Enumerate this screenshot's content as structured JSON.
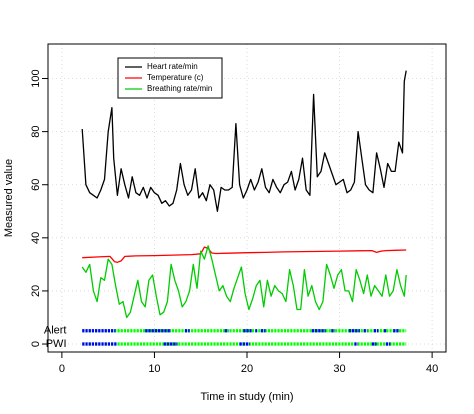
{
  "chart_data": {
    "type": "line",
    "xlabel": "Time in study (min)",
    "ylabel": "Measured value",
    "xlim": [
      -1.5,
      41.5
    ],
    "ylim": [
      -3,
      113
    ],
    "xticks": [
      0,
      10,
      20,
      30,
      40
    ],
    "yticks": [
      0,
      20,
      40,
      60,
      80,
      100
    ],
    "grid": true,
    "legend_position": "top-left",
    "series": [
      {
        "name": "Heart rate/min",
        "color": "#000000",
        "x": [
          2.2,
          2.6,
          3.0,
          3.4,
          3.8,
          4.2,
          4.6,
          5.0,
          5.4,
          5.6,
          6.0,
          6.4,
          6.8,
          7.2,
          7.6,
          8.0,
          8.4,
          8.8,
          9.2,
          9.6,
          10.0,
          10.4,
          10.8,
          11.2,
          11.6,
          12.0,
          12.4,
          12.8,
          13.2,
          13.6,
          14.0,
          14.4,
          14.8,
          15.2,
          15.6,
          16.0,
          16.4,
          16.8,
          17.2,
          17.6,
          18.0,
          18.4,
          18.8,
          19.2,
          19.6,
          20.0,
          20.4,
          20.8,
          21.2,
          21.6,
          22.0,
          22.4,
          22.8,
          23.2,
          23.6,
          24.0,
          24.4,
          24.8,
          25.2,
          25.6,
          26.0,
          26.4,
          26.8,
          27.2,
          27.6,
          28.0,
          28.4,
          28.8,
          29.2,
          29.6,
          30.0,
          30.4,
          30.8,
          31.2,
          31.6,
          32.0,
          32.4,
          32.8,
          33.2,
          33.6,
          34.0,
          34.4,
          34.8,
          35.2,
          35.6,
          36.0,
          36.4,
          36.8,
          37.0,
          37.2
        ],
        "y": [
          81,
          60,
          57,
          56,
          55,
          58,
          62,
          80,
          89,
          70,
          56,
          66,
          60,
          55,
          63,
          57,
          56,
          59,
          55,
          59,
          57,
          56,
          53,
          54,
          52,
          53,
          58,
          68,
          60,
          56,
          58,
          66,
          55,
          57,
          54,
          60,
          58,
          50,
          59,
          58,
          58,
          59,
          83,
          60,
          55,
          58,
          62,
          58,
          61,
          66,
          59,
          57,
          62,
          59,
          57,
          60,
          61,
          65,
          58,
          62,
          70,
          58,
          56,
          94,
          63,
          65,
          72,
          68,
          64,
          60,
          61,
          62,
          57,
          58,
          61,
          80,
          70,
          60,
          58,
          57,
          72,
          66,
          59,
          68,
          65,
          65,
          76,
          72,
          99,
          103
        ]
      },
      {
        "name": "Temperature (c)",
        "color": "#ff0000",
        "x": [
          2.2,
          4.0,
          5.2,
          5.7,
          6.0,
          6.4,
          6.8,
          8.0,
          10.0,
          12.0,
          14.0,
          15.0,
          15.4,
          15.8,
          16.2,
          16.6,
          18.0,
          20.0,
          22.0,
          24.0,
          26.0,
          28.0,
          30.0,
          32.0,
          33.5,
          34.0,
          34.5,
          35.0,
          36.0,
          37.2
        ],
        "y": [
          32.5,
          32.8,
          33.0,
          31.0,
          30.8,
          31.3,
          33.0,
          33.2,
          33.3,
          33.5,
          33.7,
          34.0,
          36.5,
          36.0,
          34.3,
          34.1,
          34.2,
          34.4,
          34.5,
          34.7,
          34.8,
          34.9,
          35.0,
          35.1,
          35.2,
          34.5,
          35.0,
          35.2,
          35.3,
          35.4
        ]
      },
      {
        "name": "Breathing rate/min",
        "color": "#00cc00",
        "x": [
          2.2,
          2.6,
          3.0,
          3.4,
          3.8,
          4.2,
          4.6,
          5.0,
          5.4,
          5.8,
          6.2,
          6.6,
          7.0,
          7.4,
          7.8,
          8.2,
          8.6,
          9.0,
          9.4,
          9.8,
          10.2,
          10.6,
          11.0,
          11.4,
          11.8,
          12.2,
          12.6,
          13.0,
          13.4,
          13.8,
          14.2,
          14.6,
          15.0,
          15.4,
          15.8,
          16.2,
          16.6,
          17.0,
          17.4,
          17.8,
          18.2,
          18.6,
          19.0,
          19.4,
          19.8,
          20.2,
          20.6,
          21.0,
          21.4,
          21.8,
          22.2,
          22.6,
          23.0,
          23.4,
          23.8,
          24.2,
          24.6,
          25.0,
          25.4,
          25.8,
          26.2,
          26.6,
          27.0,
          27.4,
          27.8,
          28.2,
          28.6,
          29.0,
          29.4,
          29.8,
          30.2,
          30.6,
          31.0,
          31.4,
          31.8,
          32.2,
          32.6,
          33.0,
          33.4,
          33.8,
          34.2,
          34.6,
          35.0,
          35.4,
          35.8,
          36.2,
          36.6,
          37.0,
          37.2
        ],
        "y": [
          29,
          27,
          30,
          20,
          16,
          25,
          24,
          32,
          30,
          22,
          15,
          16,
          10,
          12,
          18,
          24,
          16,
          14,
          24,
          26,
          18,
          11,
          12,
          16,
          30,
          24,
          20,
          14,
          16,
          20,
          30,
          21,
          35,
          32,
          37,
          32,
          26,
          20,
          22,
          18,
          16,
          21,
          25,
          29,
          19,
          13,
          17,
          22,
          24,
          14,
          24,
          18,
          22,
          20,
          19,
          16,
          28,
          22,
          13,
          13,
          28,
          18,
          22,
          16,
          13,
          16,
          30,
          26,
          21,
          26,
          28,
          20,
          20,
          16,
          28,
          24,
          19,
          26,
          18,
          22,
          20,
          18,
          26,
          18,
          20,
          28,
          22,
          18,
          26
        ]
      }
    ],
    "event_rows": [
      {
        "name": "Alert",
        "y": 5,
        "base_color": "#00ff00",
        "event_color": "#0000ff",
        "event_ranges": [
          [
            2.2,
            5.8
          ],
          [
            9.0,
            11.8
          ],
          [
            13.3,
            13.8
          ],
          [
            17.6,
            18.0
          ],
          [
            19.6,
            20.5
          ],
          [
            20.9,
            21.1
          ],
          [
            21.5,
            22.0
          ],
          [
            27.0,
            28.5
          ],
          [
            29.1,
            29.5
          ],
          [
            31.0,
            32.2
          ],
          [
            32.6,
            33.0
          ],
          [
            33.7,
            34.2
          ],
          [
            34.8,
            35.1
          ],
          [
            35.8,
            36.4
          ]
        ]
      },
      {
        "name": "PWI",
        "y": 0,
        "base_color": "#00ff00",
        "event_color": "#0000ff",
        "event_ranges": [
          [
            2.2,
            6.0
          ],
          [
            11.0,
            12.5
          ],
          [
            19.2,
            20.3
          ],
          [
            31.6,
            32.0
          ],
          [
            33.5,
            34.0
          ],
          [
            35.0,
            35.5
          ]
        ]
      }
    ]
  }
}
